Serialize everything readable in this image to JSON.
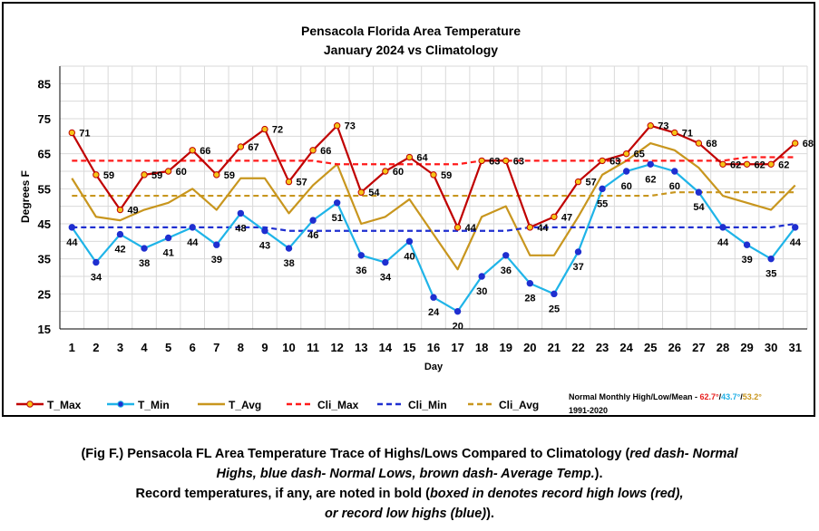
{
  "chart_data": {
    "type": "line",
    "title": "Pensacola Florida Area Temperature",
    "subtitle": "January 2024 vs Climatology",
    "xlabel": "Day",
    "ylabel": "Degrees F",
    "x": [
      1,
      2,
      3,
      4,
      5,
      6,
      7,
      8,
      9,
      10,
      11,
      12,
      13,
      14,
      15,
      16,
      17,
      18,
      19,
      20,
      21,
      22,
      23,
      24,
      25,
      26,
      27,
      28,
      29,
      30,
      31
    ],
    "ylim": [
      15,
      90
    ],
    "yticks": [
      15,
      25,
      35,
      45,
      55,
      65,
      75,
      85
    ],
    "grid": true,
    "legend_position": "bottom",
    "series": [
      {
        "name": "T_Max",
        "color": "#c00000",
        "style": "solid-markers",
        "values": [
          71,
          59,
          49,
          59,
          60,
          66,
          59,
          67,
          72,
          57,
          66,
          73,
          54,
          60,
          64,
          59,
          44,
          63,
          63,
          44,
          47,
          57,
          63,
          65,
          73,
          71,
          68,
          62,
          62,
          62,
          68
        ],
        "labels": [
          "71",
          "59",
          "49",
          "59",
          "60",
          "66",
          "59",
          "67",
          "72",
          "57",
          "66",
          "73",
          "54",
          "60",
          "64",
          "59",
          "44",
          "63",
          "63",
          "44",
          "47",
          "57",
          "63",
          "65",
          "73",
          "71",
          "68",
          "62",
          "62",
          "62",
          "68"
        ]
      },
      {
        "name": "T_Min",
        "color": "#1fb4e8",
        "style": "solid-markers",
        "values": [
          44,
          34,
          42,
          38,
          41,
          44,
          39,
          48,
          43,
          38,
          46,
          51,
          36,
          34,
          40,
          24,
          20,
          30,
          36,
          28,
          25,
          37,
          55,
          60,
          62,
          60,
          54,
          44,
          39,
          35,
          44
        ],
        "labels": [
          "44",
          "34",
          "42",
          "38",
          "41",
          "44",
          "39",
          "48",
          "43",
          "38",
          "46",
          "51",
          "36",
          "34",
          "40",
          "24",
          "20",
          "30",
          "36",
          "28",
          "25",
          "37",
          "55",
          "60",
          "62",
          "60",
          "54",
          "44",
          "39",
          "35",
          "44"
        ]
      },
      {
        "name": "T_Avg",
        "color": "#c8961e",
        "style": "solid",
        "values": [
          58,
          47,
          46,
          49,
          51,
          55,
          49,
          58,
          58,
          48,
          56,
          62,
          45,
          47,
          52,
          42,
          32,
          47,
          50,
          36,
          36,
          47,
          59,
          63,
          68,
          66,
          61,
          53,
          51,
          49,
          56
        ]
      },
      {
        "name": "Cli_Max",
        "color": "#ff1a1a",
        "style": "dashed",
        "values": [
          63,
          63,
          63,
          63,
          63,
          63,
          63,
          63,
          63,
          63,
          63,
          62,
          62,
          62,
          62,
          62,
          62,
          63,
          63,
          63,
          63,
          63,
          63,
          63,
          63,
          63,
          63,
          63,
          64,
          64,
          64
        ]
      },
      {
        "name": "Cli_Min",
        "color": "#1f2fd0",
        "style": "dashed",
        "values": [
          44,
          44,
          44,
          44,
          44,
          44,
          44,
          44,
          44,
          43,
          43,
          43,
          43,
          43,
          43,
          43,
          43,
          43,
          43,
          44,
          44,
          44,
          44,
          44,
          44,
          44,
          44,
          44,
          44,
          44,
          45
        ]
      },
      {
        "name": "Cli_Avg",
        "color": "#c8961e",
        "style": "dashed",
        "values": [
          53,
          53,
          53,
          53,
          53,
          53,
          53,
          53,
          53,
          53,
          53,
          53,
          53,
          53,
          53,
          53,
          53,
          53,
          53,
          53,
          53,
          53,
          53,
          53,
          53,
          54,
          54,
          54,
          54,
          54,
          54
        ]
      }
    ],
    "normals_note": {
      "prefix": "Normal Monthly High/Low/Mean - ",
      "high": "62.7°",
      "sep1": "/",
      "low": "43.7°",
      "sep2": "/",
      "mean": "53.2°",
      "period": "1991-2020"
    }
  },
  "caption": {
    "line1_a": "(Fig F.) Pensacola FL Area Temperature Trace of Highs/Lows Compared to Climatology (",
    "line1_i": "red dash- Normal",
    "line2_i": "Highs, blue dash- Normal Lows, brown dash- Average Temp.",
    "line2_b": ").",
    "line3_a": "Record temperatures, if any, are noted in bold (",
    "line3_i": "boxed in denotes record high lows (red),",
    "line4_i": "or record low highs (blue)",
    "line4_b": ")."
  },
  "colors": {
    "grid": "#d9d9d9",
    "axis": "#000000",
    "marker_fill_gold": "#f5c518",
    "marker_fill_blue": "#1f2fd0"
  }
}
